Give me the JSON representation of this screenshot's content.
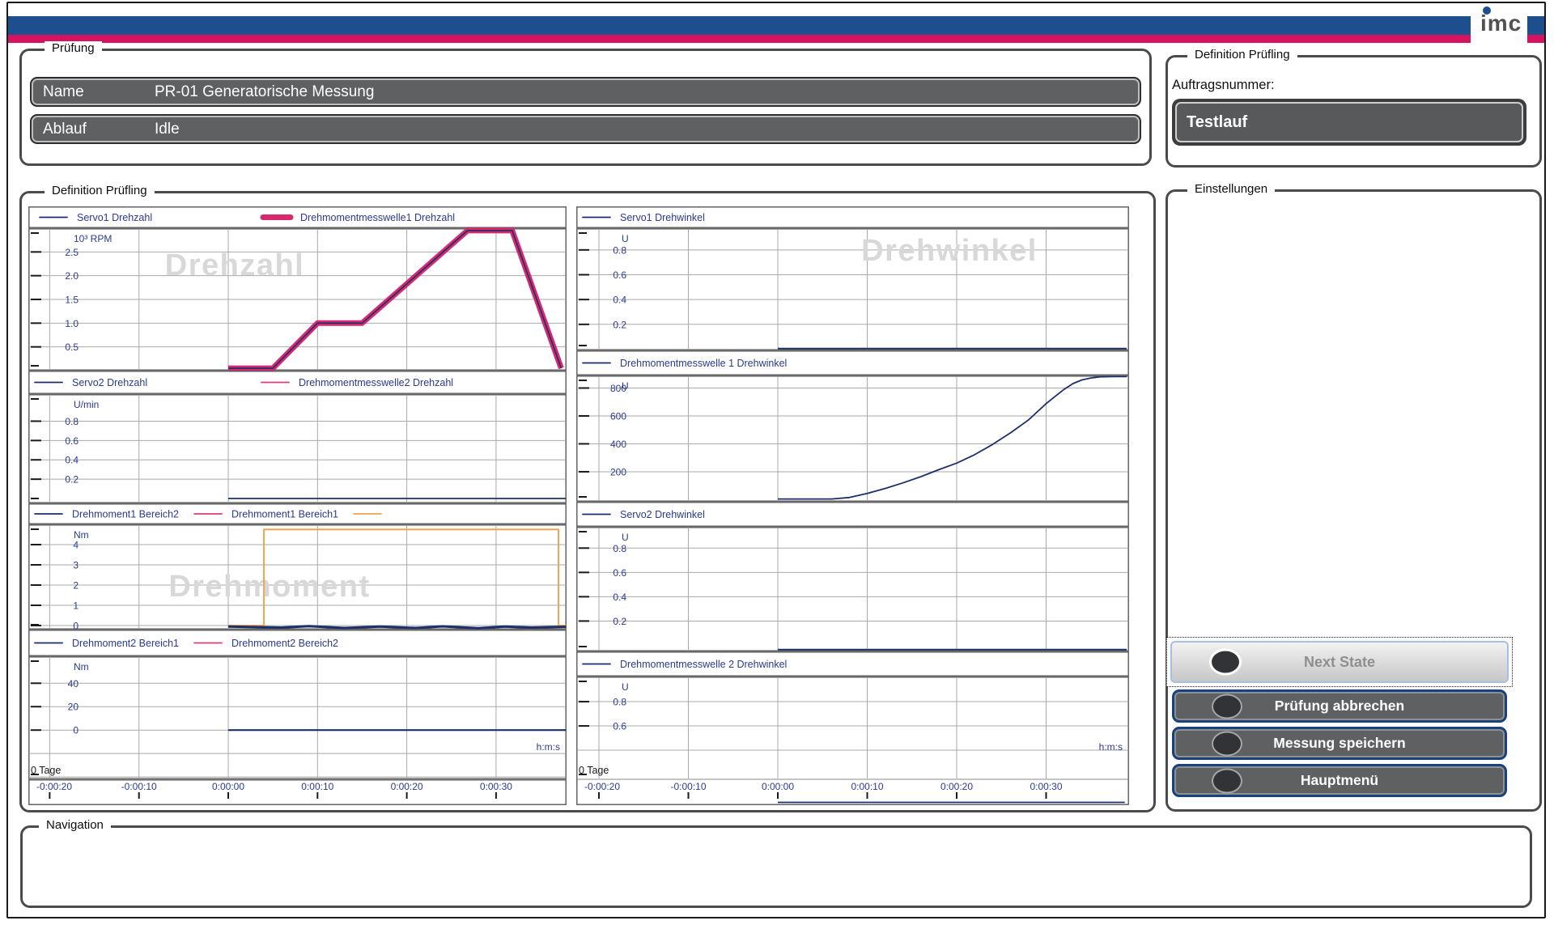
{
  "window": {
    "logo_text": "imc",
    "brand_blue": "#1d4f8f",
    "brand_red": "#d6135f"
  },
  "pruefung": {
    "title": "Prüfung",
    "rows": [
      {
        "label": "Name",
        "value": "PR-01 Generatorische Messung"
      },
      {
        "label": "Ablauf",
        "value": "Idle"
      }
    ]
  },
  "auftrag": {
    "title": "Definition Prüfling",
    "field_label": "Auftragsnummer:",
    "field_value": "Testlauf"
  },
  "main": {
    "title": "Definition Prüfling"
  },
  "einstellungen": {
    "title": "Einstellungen",
    "buttons": [
      {
        "label": "Next State",
        "enabled": false
      },
      {
        "label": "Prüfung abbrechen",
        "enabled": true
      },
      {
        "label": "Messung speichern",
        "enabled": true
      },
      {
        "label": "Hauptmenü",
        "enabled": true
      }
    ]
  },
  "navigation": {
    "title": "Navigation"
  },
  "chart_data": {
    "type": "line",
    "time_axis": {
      "tick_seconds": [
        -20,
        -10,
        0,
        10,
        20,
        30
      ],
      "tick_labels": [
        "-0:00:20",
        "-0:00:10",
        "0:00:00",
        "0:00:10",
        "0:00:20",
        "0:00:30"
      ],
      "day_label": "0 Tage",
      "time_unit_label": "h:m:s"
    },
    "colors": {
      "navy": "#1c2f6b",
      "pink": "#d52b6e",
      "pink_thin": "#dc3d78",
      "orange": "#f0a254",
      "legend_text": "#2b3a8f",
      "watermark": "#d8d8d8"
    },
    "columns": {
      "left": {
        "legends": [
          [
            {
              "label": "Servo1 Drehzahl",
              "color": "navy",
              "thick": false
            },
            {
              "label": "Drehmomentmesswelle1 Drehzahl",
              "color": "pink",
              "thick": true
            }
          ],
          [
            {
              "label": "Servo2 Drehzahl",
              "color": "navy",
              "thick": false
            },
            {
              "label": "Drehmomentmesswelle2 Drehzahl",
              "color": "pink_thin",
              "thick": false
            }
          ],
          [
            {
              "label": "Drehmoment1 Bereich2",
              "color": "navy",
              "thick": false
            },
            {
              "label": "Drehmoment1 Bereich1",
              "color": "pink_thin",
              "thick": false
            },
            {
              "label": "",
              "color": "orange",
              "thick": false
            }
          ],
          [
            {
              "label": "Drehmoment2 Bereich1",
              "color": "navy",
              "thick": false
            },
            {
              "label": "Drehmoment2 Bereich2",
              "color": "pink_thin",
              "thick": false
            }
          ]
        ],
        "panels": [
          {
            "name": "drehzahl-1",
            "unit": "10³ RPM",
            "watermark": "Drehzahl",
            "ylim": [
              0,
              3.0
            ],
            "yticks": [
              {
                "v": 2.5,
                "label": "2.5"
              },
              {
                "v": 2.0,
                "label": "2.0"
              },
              {
                "v": 1.5,
                "label": "1.5"
              },
              {
                "v": 1.0,
                "label": "1.0"
              },
              {
                "v": 0.5,
                "label": "0.5"
              }
            ],
            "grid_extra": [],
            "series": [
              {
                "name": "Drehmomentmesswelle1 Drehzahl",
                "color": "pink",
                "width": 7,
                "points": [
                  [
                    0,
                    0.05
                  ],
                  [
                    5,
                    0.05
                  ],
                  [
                    10,
                    1.0
                  ],
                  [
                    15,
                    1.0
                  ],
                  [
                    26.8,
                    2.95
                  ],
                  [
                    31.8,
                    2.95
                  ],
                  [
                    37.3,
                    0.05
                  ]
                ]
              },
              {
                "name": "Servo1 Drehzahl",
                "color": "navy",
                "width": 1.6,
                "points": [
                  [
                    0,
                    0.05
                  ],
                  [
                    5,
                    0.05
                  ],
                  [
                    10,
                    1.0
                  ],
                  [
                    15,
                    1.0
                  ],
                  [
                    26.8,
                    2.95
                  ],
                  [
                    31.8,
                    2.95
                  ],
                  [
                    37.3,
                    0.05
                  ]
                ]
              }
            ]
          },
          {
            "name": "drehzahl-2",
            "unit": "U/min",
            "watermark": "",
            "ylim": [
              -0.05,
              1.08
            ],
            "yticks": [
              {
                "v": 0.8,
                "label": "0.8"
              },
              {
                "v": 0.6,
                "label": "0.6"
              },
              {
                "v": 0.4,
                "label": "0.4"
              },
              {
                "v": 0.2,
                "label": "0.2"
              }
            ],
            "grid_extra": [],
            "series": [
              {
                "name": "Servo2 Drehzahl",
                "color": "navy",
                "width": 1.8,
                "points": [
                  [
                    0,
                    0
                  ],
                  [
                    37.8,
                    0
                  ]
                ]
              }
            ]
          },
          {
            "name": "drehmoment-1",
            "unit": "Nm",
            "watermark": "Drehmoment",
            "ylim": [
              -0.2,
              5.0
            ],
            "yticks": [
              {
                "v": 4,
                "label": "4"
              },
              {
                "v": 3,
                "label": "3"
              },
              {
                "v": 2,
                "label": "2"
              },
              {
                "v": 1,
                "label": "1"
              },
              {
                "v": 0,
                "label": "0"
              }
            ],
            "grid_extra": [],
            "series": [
              {
                "name": "Drehmoment1 Bereich1 Grenze",
                "color": "orange",
                "width": 2,
                "points": [
                  [
                    0,
                    0
                  ],
                  [
                    4,
                    0
                  ],
                  [
                    4,
                    4.75
                  ],
                  [
                    37,
                    4.75
                  ],
                  [
                    37,
                    0
                  ],
                  [
                    37.8,
                    0
                  ]
                ]
              },
              {
                "name": "Drehmoment1 Bereich2",
                "color": "navy",
                "width": 3,
                "points": [
                  [
                    0,
                    -0.05
                  ],
                  [
                    6,
                    -0.1
                  ],
                  [
                    9,
                    -0.03
                  ],
                  [
                    13,
                    -0.12
                  ],
                  [
                    17,
                    -0.05
                  ],
                  [
                    21,
                    -0.12
                  ],
                  [
                    24,
                    -0.04
                  ],
                  [
                    28,
                    -0.13
                  ],
                  [
                    31,
                    -0.05
                  ],
                  [
                    34,
                    -0.1
                  ],
                  [
                    37.8,
                    -0.06
                  ]
                ]
              }
            ]
          },
          {
            "name": "drehmoment-2",
            "unit": "Nm",
            "watermark": "",
            "ylim": [
              -42,
              63
            ],
            "yticks": [
              {
                "v": 40,
                "label": "40"
              },
              {
                "v": 20,
                "label": "20"
              },
              {
                "v": 0,
                "label": "0"
              }
            ],
            "grid_extra": [
              -20,
              -40
            ],
            "series": [
              {
                "name": "Drehmoment2 Bereich1",
                "color": "navy",
                "width": 2.2,
                "points": [
                  [
                    0,
                    0
                  ],
                  [
                    37.8,
                    0
                  ]
                ]
              }
            ]
          }
        ]
      },
      "right": {
        "legends": [
          [
            {
              "label": "Servo1 Drehwinkel",
              "color": "navy",
              "thick": false
            }
          ],
          [
            {
              "label": "Drehmomentmesswelle 1 Drehwinkel",
              "color": "navy",
              "thick": false
            }
          ],
          [
            {
              "label": "Servo2 Drehwinkel",
              "color": "navy",
              "thick": false
            }
          ],
          [
            {
              "label": "Drehmomentmesswelle 2 Drehwinkel",
              "color": "navy",
              "thick": false
            }
          ]
        ],
        "panels": [
          {
            "name": "drehwinkel-servo1",
            "unit": "U",
            "watermark": "Drehwinkel",
            "ylim": [
              -0.01,
              0.975
            ],
            "yticks": [
              {
                "v": 0.8,
                "label": "0.8"
              },
              {
                "v": 0.6,
                "label": "0.6"
              },
              {
                "v": 0.4,
                "label": "0.4"
              },
              {
                "v": 0.2,
                "label": "0.2"
              }
            ],
            "grid_extra": [],
            "series": [
              {
                "name": "Servo1 Drehwinkel",
                "color": "navy",
                "width": 1.8,
                "points": [
                  [
                    0,
                    0.005
                  ],
                  [
                    39,
                    0.005
                  ]
                ]
              }
            ]
          },
          {
            "name": "drehwinkel-messwelle1",
            "unit": "U",
            "watermark": "",
            "ylim": [
              -15,
              890
            ],
            "yticks": [
              {
                "v": 800,
                "label": "800"
              },
              {
                "v": 600,
                "label": "600"
              },
              {
                "v": 400,
                "label": "400"
              },
              {
                "v": 200,
                "label": "200"
              }
            ],
            "grid_extra": [],
            "series": [
              {
                "name": "Drehmomentmesswelle 1 Drehwinkel",
                "color": "navy",
                "width": 1.8,
                "points": [
                  [
                    0,
                    5
                  ],
                  [
                    6,
                    5
                  ],
                  [
                    8,
                    15
                  ],
                  [
                    10,
                    45
                  ],
                  [
                    12,
                    80
                  ],
                  [
                    14,
                    120
                  ],
                  [
                    16,
                    165
                  ],
                  [
                    18,
                    215
                  ],
                  [
                    20,
                    262
                  ],
                  [
                    22,
                    322
                  ],
                  [
                    24,
                    395
                  ],
                  [
                    26,
                    478
                  ],
                  [
                    28,
                    570
                  ],
                  [
                    30,
                    688
                  ],
                  [
                    31,
                    740
                  ],
                  [
                    32,
                    790
                  ],
                  [
                    33,
                    832
                  ],
                  [
                    34,
                    858
                  ],
                  [
                    35,
                    872
                  ],
                  [
                    36,
                    880
                  ],
                  [
                    37.5,
                    884
                  ],
                  [
                    39,
                    885
                  ]
                ]
              }
            ]
          },
          {
            "name": "drehwinkel-servo2",
            "unit": "U",
            "watermark": "",
            "ylim": [
              -0.05,
              0.975
            ],
            "yticks": [
              {
                "v": 0.8,
                "label": "0.8"
              },
              {
                "v": 0.6,
                "label": "0.6"
              },
              {
                "v": 0.4,
                "label": "0.4"
              },
              {
                "v": 0.2,
                "label": "0.2"
              }
            ],
            "grid_extra": [],
            "series": [
              {
                "name": "Servo2 Drehwinkel",
                "color": "navy",
                "width": 1.8,
                "points": [
                  [
                    0,
                    -0.035
                  ],
                  [
                    39,
                    -0.035
                  ]
                ]
              }
            ]
          },
          {
            "name": "drehwinkel-messwelle2",
            "unit": "U",
            "watermark": "",
            "ylim": [
              -0.053,
              1.007
            ],
            "yticks": [
              {
                "v": 0.8,
                "label": "0.8"
              },
              {
                "v": 0.6,
                "label": "0.6"
              }
            ],
            "grid_extra": [
              0.4
            ],
            "series": [
              {
                "name": "Drehmomentmesswelle 2 Drehwinkel",
                "color": "navy",
                "width": 1.8,
                "points": [
                  [
                    0,
                    -0.03
                  ],
                  [
                    38.8,
                    -0.03
                  ]
                ]
              }
            ]
          }
        ]
      }
    }
  }
}
